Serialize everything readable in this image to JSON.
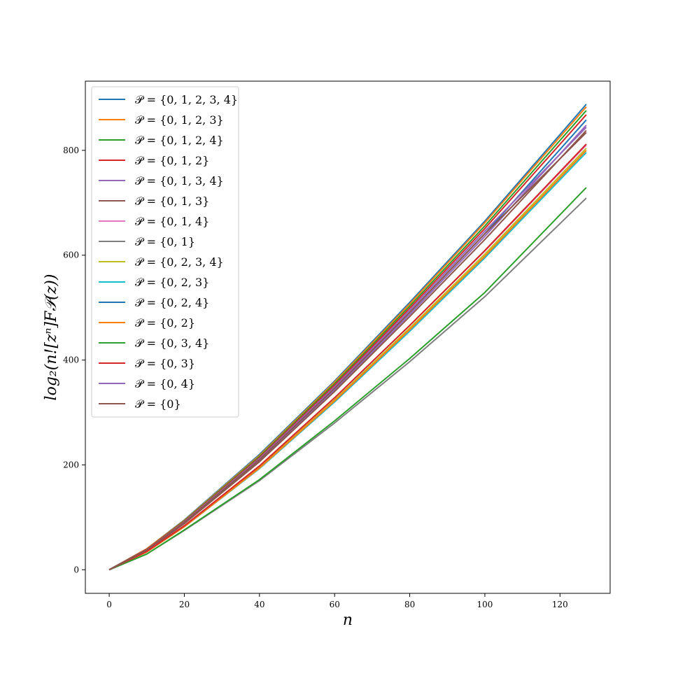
{
  "chart_data": {
    "type": "line",
    "xlabel": "n",
    "ylabel": "log₂(n![zⁿ]F𝒫(z))",
    "xlim": [
      -6.35,
      133.35
    ],
    "ylim": [
      -45,
      932
    ],
    "xticks": [
      0,
      20,
      40,
      60,
      80,
      100,
      120
    ],
    "yticks": [
      0,
      200,
      400,
      600,
      800
    ],
    "grid": false,
    "legend_position": "top-left",
    "series": [
      {
        "name": "𝒫 = {0, 1, 2, 3, 4}",
        "color": "#1f77b4",
        "x": [
          0,
          10,
          20,
          40,
          60,
          80,
          100,
          127
        ],
        "y": [
          0,
          40,
          95,
          220,
          360,
          510,
          665,
          888
        ]
      },
      {
        "name": "𝒫 = {0, 1, 2, 3}",
        "color": "#ff7f0e",
        "x": [
          0,
          10,
          20,
          40,
          60,
          80,
          100,
          127
        ],
        "y": [
          0,
          40,
          94,
          218,
          358,
          507,
          662,
          883
        ]
      },
      {
        "name": "𝒫 = {0, 1, 2, 4}",
        "color": "#2ca02c",
        "x": [
          0,
          10,
          20,
          40,
          60,
          80,
          100,
          127
        ],
        "y": [
          0,
          39,
          93,
          216,
          355,
          503,
          656,
          876
        ]
      },
      {
        "name": "𝒫 = {0, 1, 2}",
        "color": "#d62728",
        "x": [
          0,
          10,
          20,
          40,
          60,
          80,
          100,
          127
        ],
        "y": [
          0,
          39,
          92,
          214,
          352,
          499,
          651,
          868
        ]
      },
      {
        "name": "𝒫 = {0, 1, 3, 4}",
        "color": "#9467bd",
        "x": [
          0,
          10,
          20,
          40,
          60,
          80,
          100,
          127
        ],
        "y": [
          0,
          37,
          89,
          208,
          343,
          487,
          636,
          848
        ]
      },
      {
        "name": "𝒫 = {0, 1, 3}",
        "color": "#8c564b",
        "x": [
          0,
          10,
          20,
          40,
          60,
          80,
          100,
          127
        ],
        "y": [
          0,
          37,
          88,
          206,
          340,
          483,
          630,
          838
        ]
      },
      {
        "name": "𝒫 = {0, 1, 4}",
        "color": "#e377c2",
        "x": [
          0,
          10,
          20,
          40,
          60,
          80,
          100,
          127
        ],
        "y": [
          0,
          35,
          84,
          198,
          328,
          466,
          608,
          810
        ]
      },
      {
        "name": "𝒫 = {0, 1}",
        "color": "#7f7f7f",
        "x": [
          0,
          10,
          20,
          40,
          60,
          80,
          100,
          127
        ],
        "y": [
          0,
          30,
          75,
          170,
          280,
          397,
          521,
          709
        ]
      },
      {
        "name": "𝒫 = {0, 2, 3, 4}",
        "color": "#bcbd22",
        "x": [
          0,
          10,
          20,
          40,
          60,
          80,
          100,
          127
        ],
        "y": [
          0,
          34,
          83,
          195,
          324,
          461,
          602,
          804
        ]
      },
      {
        "name": "𝒫 = {0, 2, 3}",
        "color": "#17becf",
        "x": [
          0,
          10,
          20,
          40,
          60,
          80,
          100,
          127
        ],
        "y": [
          0,
          34,
          82,
          193,
          320,
          455,
          595,
          796
        ]
      },
      {
        "name": "𝒫 = {0, 2, 4}",
        "color": "#1f77b4",
        "x": [
          0,
          10,
          20,
          40,
          60,
          80,
          100,
          127
        ],
        "y": [
          0,
          38,
          90,
          210,
          346,
          491,
          641,
          858
        ]
      },
      {
        "name": "𝒫 = {0, 2}",
        "color": "#ff7f0e",
        "x": [
          0,
          10,
          20,
          40,
          60,
          80,
          100,
          127
        ],
        "y": [
          0,
          34,
          82,
          194,
          322,
          458,
          598,
          800
        ]
      },
      {
        "name": "𝒫 = {0, 3, 4}",
        "color": "#2ca02c",
        "x": [
          0,
          10,
          20,
          40,
          60,
          80,
          100,
          127
        ],
        "y": [
          0,
          30,
          76,
          172,
          284,
          403,
          529,
          729
        ]
      },
      {
        "name": "𝒫 = {0, 3}",
        "color": "#d62728",
        "x": [
          0,
          10,
          20,
          40,
          60,
          80,
          100,
          127
        ],
        "y": [
          0,
          35,
          84,
          198,
          328,
          466,
          609,
          812
        ]
      },
      {
        "name": "𝒫 = {0, 4}",
        "color": "#9467bd",
        "x": [
          0,
          10,
          20,
          40,
          60,
          80,
          100,
          127
        ],
        "y": [
          0,
          38,
          91,
          212,
          349,
          495,
          646,
          844
        ]
      },
      {
        "name": "𝒫 = {0}",
        "color": "#8c564b",
        "x": [
          0,
          10,
          20,
          40,
          60,
          80,
          100,
          127
        ],
        "y": [
          0,
          38,
          90,
          210,
          346,
          491,
          641,
          834
        ]
      }
    ]
  }
}
